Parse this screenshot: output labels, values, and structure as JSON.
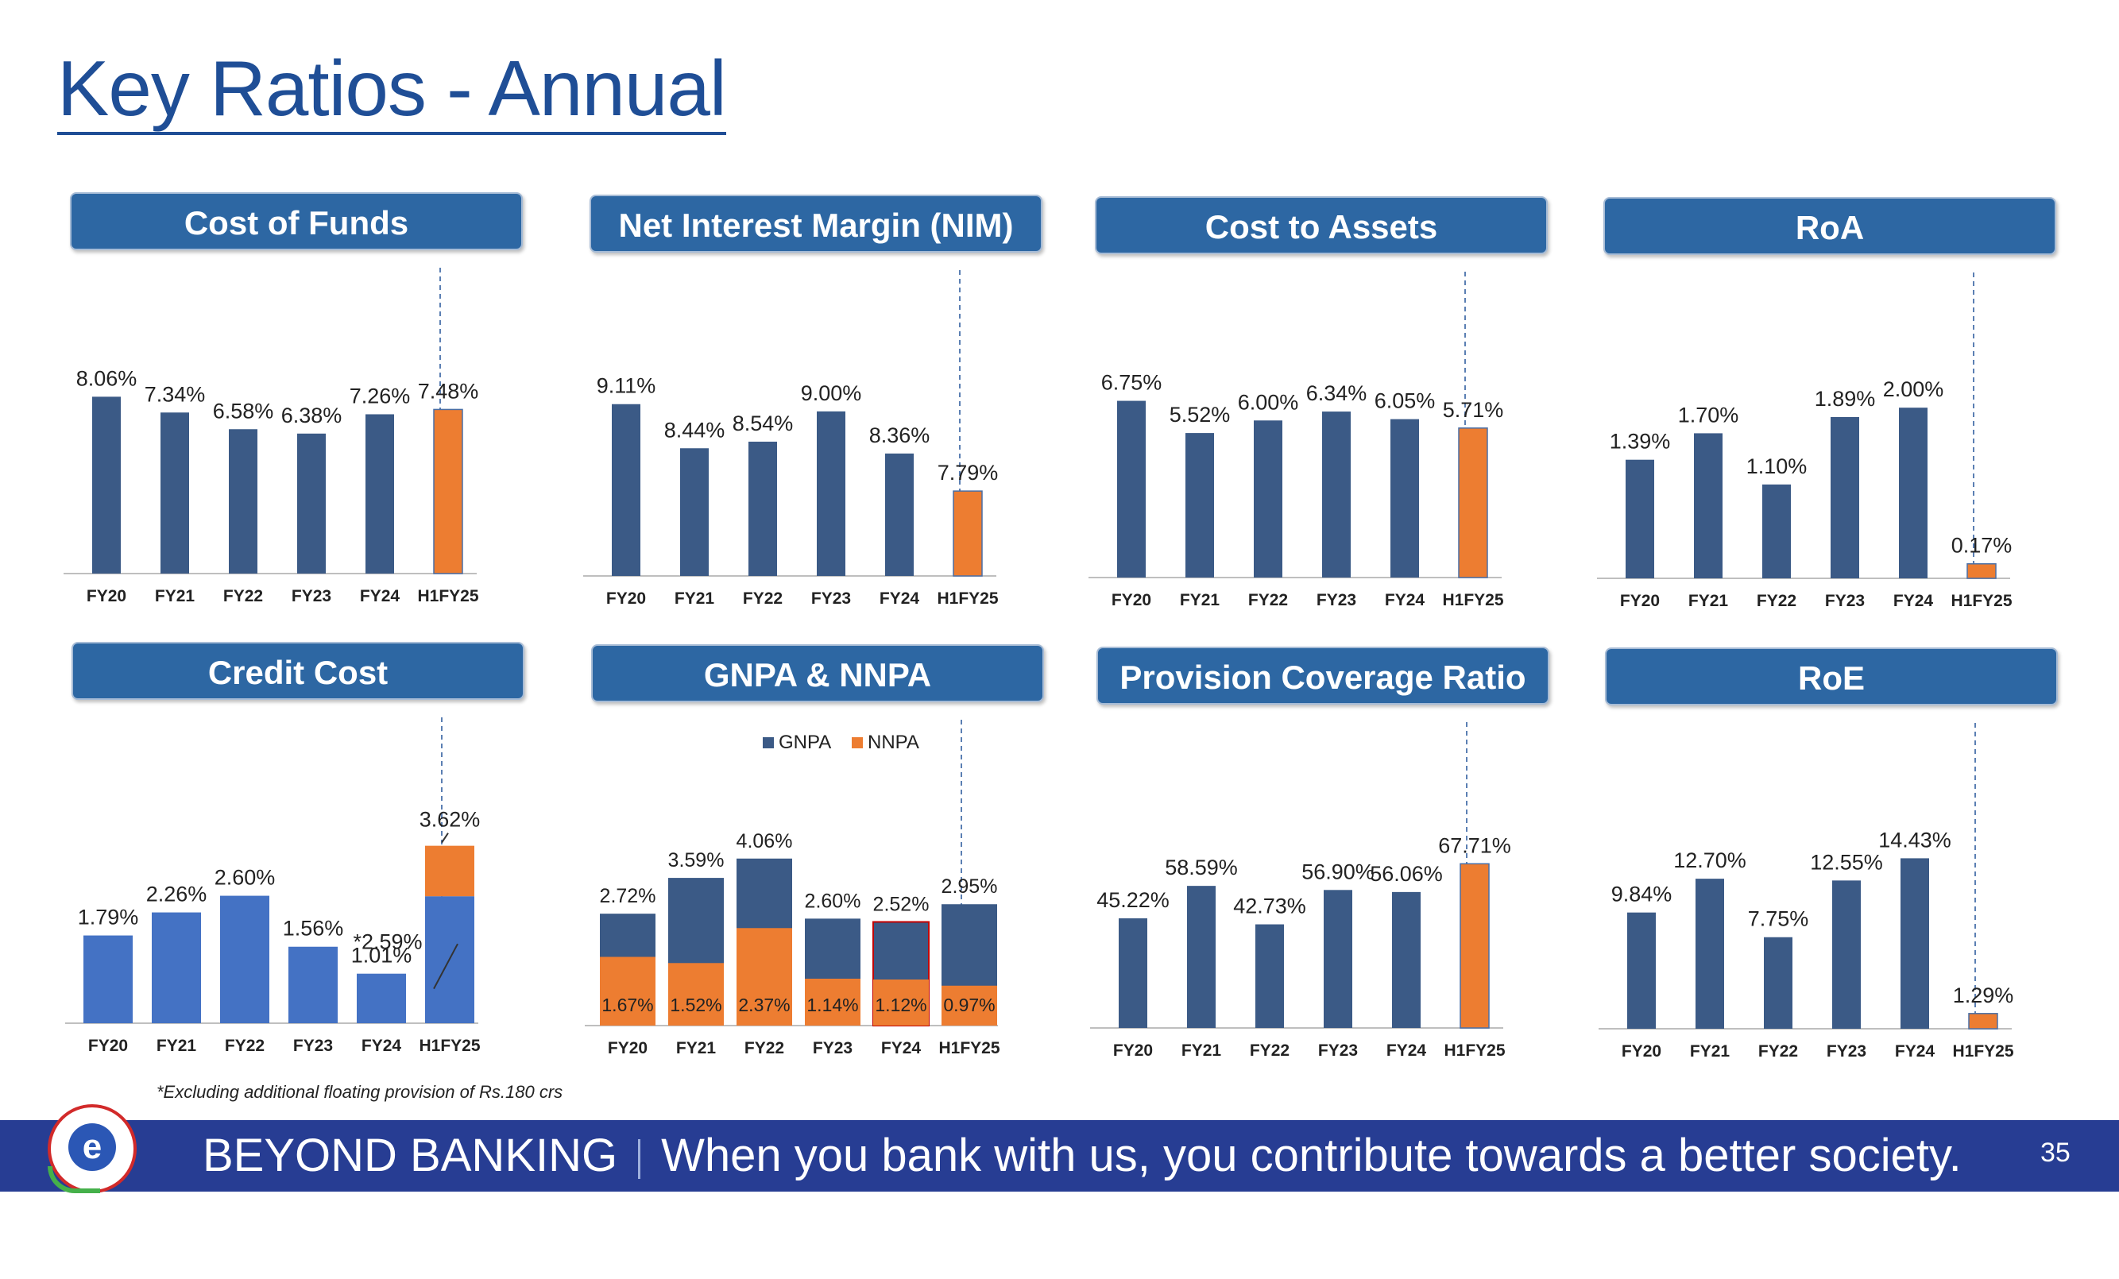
{
  "title": "Key Ratios - Annual",
  "colors": {
    "navy": "#3b5a86",
    "orange": "#ed7d31",
    "blue": "#4472c4",
    "banner": "#2d67a3"
  },
  "charts": [
    {
      "id": "cof",
      "banner": "Cost of Funds",
      "type": "bar",
      "categories": [
        "FY20",
        "FY21",
        "FY22",
        "FY23",
        "FY24",
        "H1FY25"
      ],
      "values": [
        8.06,
        7.34,
        6.58,
        6.38,
        7.26,
        7.48
      ],
      "labels": [
        "8.06%",
        "7.34%",
        "6.58%",
        "6.38%",
        "7.26%",
        "7.48%"
      ],
      "highlight": [
        5
      ],
      "max": 10.5
    },
    {
      "id": "nim",
      "banner": "Net Interest Margin (NIM)",
      "type": "bar",
      "categories": [
        "FY20",
        "FY21",
        "FY22",
        "FY23",
        "FY24",
        "H1FY25"
      ],
      "values": [
        9.11,
        8.44,
        8.54,
        9.0,
        8.36,
        7.79
      ],
      "labels": [
        "9.11%",
        "8.44%",
        "8.54%",
        "9.00%",
        "8.36%",
        "7.79%"
      ],
      "highlight": [
        5
      ],
      "base": 6.5,
      "max": 10.0
    },
    {
      "id": "cta",
      "banner": "Cost to Assets",
      "type": "bar",
      "categories": [
        "FY20",
        "FY21",
        "FY22",
        "FY23",
        "FY24",
        "H1FY25"
      ],
      "values": [
        6.75,
        5.52,
        6.0,
        6.34,
        6.05,
        5.71
      ],
      "labels": [
        "6.75%",
        "5.52%",
        "6.00%",
        "6.34%",
        "6.05%",
        "5.71%"
      ],
      "highlight": [
        5
      ],
      "max": 8.8
    },
    {
      "id": "roa",
      "banner": "RoA",
      "type": "bar",
      "categories": [
        "FY20",
        "FY21",
        "FY22",
        "FY23",
        "FY24",
        "H1FY25"
      ],
      "values": [
        1.39,
        1.7,
        1.1,
        1.89,
        2.0,
        0.17
      ],
      "labels": [
        "1.39%",
        "1.70%",
        "1.10%",
        "1.89%",
        "2.00%",
        "0.17%"
      ],
      "highlight": [
        5
      ],
      "max": 2.7
    },
    {
      "id": "cc",
      "banner": "Credit Cost",
      "type": "stacked",
      "categories": [
        "FY20",
        "FY21",
        "FY22",
        "FY23",
        "FY24",
        "H1FY25"
      ],
      "values": [
        1.79,
        2.26,
        2.6,
        1.56,
        1.01,
        2.59
      ],
      "extra": [
        0,
        0,
        0,
        0,
        0,
        1.03
      ],
      "labels": [
        "1.79%",
        "2.26%",
        "2.60%",
        "1.56%",
        "1.01%",
        ""
      ],
      "top_label": "3.62%",
      "annotation": "*2.59%",
      "max": 4.7
    },
    {
      "id": "npa",
      "banner": "GNPA & NNPA",
      "type": "overlay",
      "categories": [
        "FY20",
        "FY21",
        "FY22",
        "FY23",
        "FY24",
        "H1FY25"
      ],
      "gnpa": [
        2.72,
        3.59,
        4.06,
        2.6,
        2.52,
        2.95
      ],
      "nnpa": [
        1.67,
        1.52,
        2.37,
        1.14,
        1.12,
        0.97
      ],
      "gnpa_labels": [
        "2.72%",
        "3.59%",
        "4.06%",
        "2.60%",
        "2.52%",
        "2.95%"
      ],
      "nnpa_labels": [
        "1.67%",
        "1.52%",
        "2.37%",
        "1.14%",
        "1.12%",
        "0.97%"
      ],
      "legend": [
        "GNPA",
        "NNPA"
      ],
      "max": 5.6
    },
    {
      "id": "pcr",
      "banner": "Provision Coverage Ratio",
      "type": "bar",
      "categories": [
        "FY20",
        "FY21",
        "FY22",
        "FY23",
        "FY24",
        "H1FY25"
      ],
      "values": [
        45.22,
        58.59,
        42.73,
        56.9,
        56.06,
        67.71
      ],
      "labels": [
        "45.22%",
        "58.59%",
        "42.73%",
        "56.90%",
        "56.06%",
        "67.71%"
      ],
      "highlight": [
        5
      ],
      "max": 95
    },
    {
      "id": "roe",
      "banner": "RoE",
      "type": "bar",
      "categories": [
        "FY20",
        "FY21",
        "FY22",
        "FY23",
        "FY24",
        "H1FY25"
      ],
      "values": [
        9.84,
        12.7,
        7.75,
        12.55,
        14.43,
        1.29
      ],
      "labels": [
        "9.84%",
        "12.70%",
        "7.75%",
        "12.55%",
        "14.43%",
        "1.29%"
      ],
      "highlight": [
        5
      ],
      "max": 19.5
    }
  ],
  "footnote": "*Excluding additional floating provision of Rs.180 crs",
  "footer": {
    "brand": "BEYOND BANKING",
    "tagline": "When you bank with us, you contribute towards a better society.",
    "logo_letter": "e"
  },
  "page_number": "35"
}
